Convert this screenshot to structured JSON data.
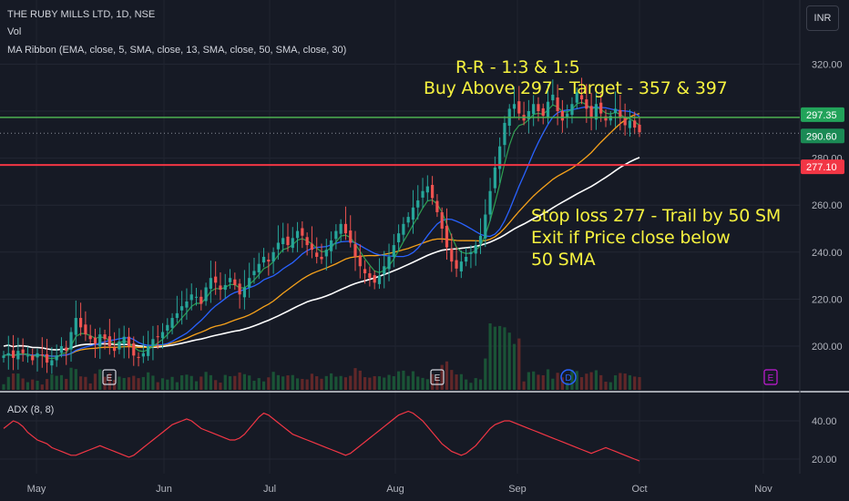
{
  "header": {
    "symbol_line": "THE RUBY MILLS LTD, 1D, NSE",
    "vol_label": "Vol",
    "ma_ribbon_label": "MA Ribbon (EMA, close, 5, SMA, close, 13, SMA, close, 50, SMA, close, 30)",
    "currency_button": "INR"
  },
  "annotations": {
    "rr": "R-R - 1:3 & 1:5",
    "buy": "Buy Above 297 - Target - 357 & 397",
    "stop_line1": "Stop loss 277 - Trail by 50 SM",
    "stop_line2": "Exit if Price close below",
    "stop_line3": "50 SMA"
  },
  "price_labels": {
    "green": "297.35",
    "last": "290.60",
    "red": "277.10"
  },
  "adx_label": "ADX (8, 8)",
  "colors": {
    "background": "#161a25",
    "up": "#26a69a",
    "down": "#ef5350",
    "ema5": "#2e9e4f",
    "sma13": "#2962ff",
    "sma30": "#f7a21b",
    "sma50": "#ffffff",
    "adx": "#f23645",
    "annotation": "#f6f23f",
    "green_line": "#4caf50",
    "red_line": "#f23645"
  },
  "chart_data": [
    {
      "type": "candlestick",
      "title": "THE RUBY MILLS LTD, 1D, NSE",
      "y_ticks": [
        "320.00",
        "300.00",
        "280.00",
        "260.00",
        "240.00",
        "220.00",
        "200.00"
      ],
      "ylim": [
        185,
        330
      ],
      "x_ticks": [
        "May",
        "Jun",
        "Jul",
        "Aug",
        "Sep",
        "Oct",
        "Nov"
      ],
      "horizontal_levels": [
        297.35,
        277.1
      ],
      "last_price": 290.6,
      "event_markers": [
        "E",
        "E",
        "D",
        "E"
      ],
      "closes": [
        196,
        197,
        195,
        198,
        197,
        196,
        194,
        197,
        196,
        193,
        194,
        196,
        200,
        198,
        206,
        212,
        208,
        205,
        203,
        201,
        205,
        203,
        200,
        198,
        202,
        204,
        200,
        196,
        195,
        197,
        200,
        203,
        204,
        206,
        209,
        212,
        214,
        217,
        219,
        222,
        221,
        218,
        225,
        229,
        227,
        224,
        226,
        229,
        226,
        222,
        225,
        229,
        232,
        235,
        238,
        236,
        240,
        244,
        246,
        243,
        246,
        249,
        247,
        243,
        241,
        238,
        237,
        241,
        245,
        249,
        252,
        248,
        244,
        238,
        234,
        231,
        229,
        227,
        230,
        234,
        238,
        243,
        248,
        252,
        255,
        259,
        262,
        266,
        268,
        263,
        257,
        250,
        242,
        236,
        233,
        236,
        238,
        240,
        243,
        247,
        256,
        266,
        276,
        285,
        295,
        301,
        303,
        299,
        296,
        300,
        303,
        300,
        298,
        304,
        307,
        300,
        296,
        299,
        303,
        308,
        305,
        301,
        297,
        303,
        299,
        296,
        298,
        301,
        297,
        294,
        296,
        293,
        291
      ],
      "adx": [
        36,
        38,
        40,
        39,
        37,
        34,
        32,
        30,
        29,
        28,
        26,
        25,
        24,
        23,
        22,
        22,
        23,
        24,
        25,
        26,
        27,
        26,
        25,
        24,
        23,
        22,
        21,
        22,
        24,
        26,
        28,
        30,
        32,
        34,
        36,
        38,
        39,
        40,
        41,
        40,
        38,
        36,
        35,
        34,
        33,
        32,
        31,
        30,
        30,
        31,
        33,
        36,
        39,
        42,
        44,
        43,
        41,
        39,
        37,
        35,
        33,
        32,
        31,
        30,
        29,
        28,
        27,
        26,
        25,
        24,
        23,
        22,
        23,
        25,
        27,
        29,
        31,
        33,
        35,
        37,
        39,
        41,
        43,
        44,
        45,
        44,
        42,
        40,
        37,
        34,
        31,
        28,
        26,
        24,
        23,
        22,
        23,
        25,
        27,
        30,
        33,
        36,
        38,
        39,
        40,
        40,
        39,
        38,
        37,
        36,
        35,
        34,
        33,
        32,
        31,
        30,
        29,
        28,
        27,
        26,
        25,
        24,
        23,
        24,
        25,
        26,
        25,
        24,
        23,
        22,
        21,
        20,
        19
      ]
    },
    {
      "type": "line",
      "title": "ADX (8, 8)",
      "y_ticks": [
        "40.00",
        "20.00"
      ],
      "ylim": [
        10,
        50
      ]
    }
  ]
}
